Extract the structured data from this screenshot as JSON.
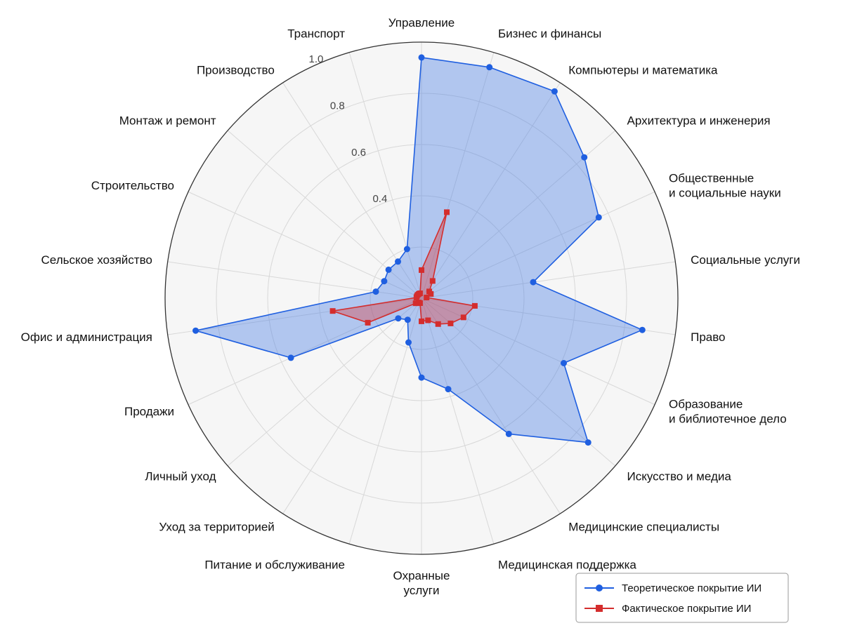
{
  "chart_data": {
    "type": "radar",
    "categories": [
      "Управление",
      "Бизнес и финансы",
      "Компьютеры и математика",
      "Архитектура и инженерия",
      "Общественные\nи социальные науки",
      "Социальные услуги",
      "Право",
      "Образование\nи библиотечное дело",
      "Искусство и медиа",
      "Медицинские специалисты",
      "Медицинская поддержка",
      "Охранные\nуслуги",
      "Питание и обслуживание",
      "Уход за территорией",
      "Личный уход",
      "Продажи",
      "Офис и администрация",
      "Сельское хозяйство",
      "Строительство",
      "Монтаж и ремонт",
      "Производство",
      "Транспорт"
    ],
    "series": [
      {
        "name": "Теоретическое покрытие ИИ",
        "color": "#1f5fe0",
        "fill": "rgba(66,120,230,0.38)",
        "marker": "circle",
        "values": [
          0.94,
          0.94,
          0.96,
          0.84,
          0.76,
          0.44,
          0.87,
          0.61,
          0.86,
          0.63,
          0.37,
          0.31,
          0.18,
          0.1,
          0.12,
          0.56,
          0.89,
          0.18,
          0.16,
          0.17,
          0.17,
          0.2
        ]
      },
      {
        "name": "Фактическое покрытие ИИ",
        "color": "#d42d2d",
        "fill": "rgba(220,60,60,0.38)",
        "marker": "square",
        "values": [
          0.11,
          0.35,
          0.08,
          0.04,
          0.04,
          0.02,
          0.21,
          0.18,
          0.15,
          0.12,
          0.09,
          0.09,
          0.02,
          0.02,
          0.03,
          0.23,
          0.35,
          0.02,
          0.02,
          0.02,
          0.02,
          0.02
        ]
      }
    ],
    "rlim": [
      0,
      1.0
    ],
    "ticks": [
      {
        "value": 0.4,
        "label": "0.4"
      },
      {
        "value": 0.6,
        "label": "0.6"
      },
      {
        "value": 0.8,
        "label": "0.8"
      },
      {
        "value": 1.0,
        "label": "1.0"
      }
    ],
    "grid": true,
    "legend_position": "bottom-right"
  }
}
